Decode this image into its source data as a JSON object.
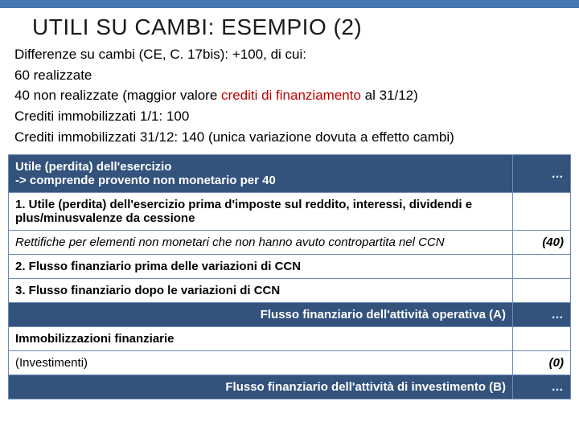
{
  "colors": {
    "topbar": "#4678b4",
    "darkRowBg": "#33537d",
    "darkRowText": "#ffffff",
    "border": "#6a8bb5",
    "highlight": "#c00000",
    "text": "#000000"
  },
  "title": "UTILI SU CAMBI: ESEMPIO (2)",
  "intro": {
    "l1a": "Differenze su cambi (CE, C. 17bis): +100, di cui:",
    "l2": "60 realizzate",
    "l3a": "40 non realizzate (maggior valore ",
    "l3b": "crediti di finanziamento",
    "l3c": " al 31/12)",
    "l4": "Crediti immobilizzati 1/1: 100",
    "l5": "Crediti immobilizzati 31/12: 140 (unica variazione dovuta a effetto cambi)"
  },
  "rows": {
    "r1": {
      "label": "Utile (perdita) dell'esercizio",
      "sub": "-> comprende provento non monetario per 40",
      "val": "…"
    },
    "r2": {
      "label": "1. Utile (perdita) dell'esercizio prima d'imposte sul reddito, interessi, dividendi e plus/minusvalenze da cessione",
      "val": ""
    },
    "r3": {
      "label": "Rettifiche per elementi non monetari che non hanno avuto contropartita nel CCN",
      "val": "(40)"
    },
    "r4": {
      "label": "2. Flusso finanziario prima delle variazioni di CCN",
      "val": ""
    },
    "r5": {
      "label": "3. Flusso finanziario dopo le variazioni di CCN",
      "val": ""
    },
    "r6": {
      "label": "Flusso finanziario dell'attività operativa (A)",
      "val": "…"
    },
    "r7": {
      "label": "Immobilizzazioni finanziarie",
      "val": ""
    },
    "r8": {
      "label": "(Investimenti)",
      "val": "(0)"
    },
    "r9": {
      "label": "Flusso finanziario dell'attività di investimento (B)",
      "val": "…"
    }
  }
}
